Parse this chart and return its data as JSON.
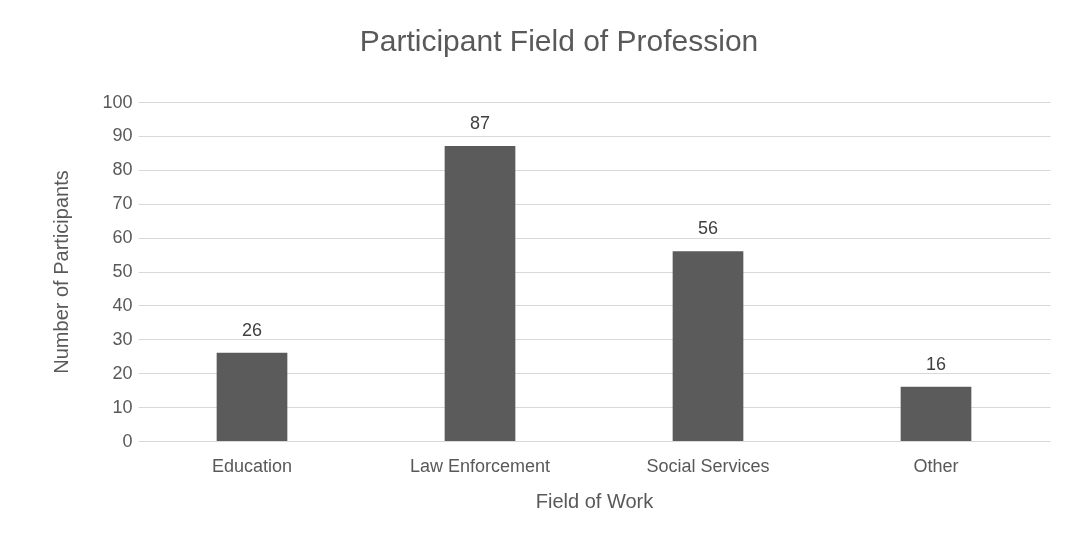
{
  "chart_data": {
    "type": "bar",
    "title": "Participant Field of Profession",
    "xlabel": "Field of Work",
    "ylabel": "Number of Participants",
    "categories": [
      "Education",
      "Law Enforcement",
      "Social Services",
      "Other"
    ],
    "values": [
      26,
      87,
      56,
      16
    ],
    "color": "#5b5b5b",
    "ylim": [
      0,
      100
    ],
    "yticks": [
      0,
      10,
      20,
      30,
      40,
      50,
      60,
      70,
      80,
      90,
      100
    ],
    "grid": "y",
    "data_labels": true
  }
}
